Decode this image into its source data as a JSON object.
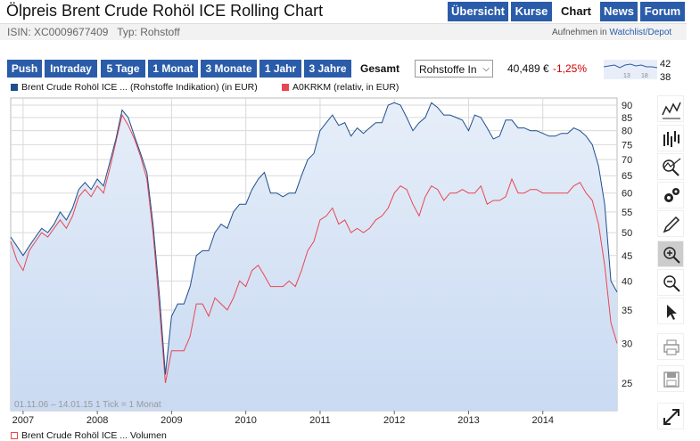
{
  "header": {
    "title": "Ölpreis Brent Crude Rohöl ICE Rolling Chart",
    "nav": [
      "Übersicht",
      "Kurse",
      "Chart",
      "News",
      "Forum"
    ],
    "active_nav": "Chart",
    "isin_text": "ISIN: XC0009677409   Typ: Rohstoff",
    "watch_prefix": "Aufnehmen in",
    "watch_link": "Watchlist/Depot"
  },
  "toolbar": {
    "ranges": [
      "Push",
      "Intraday",
      "5 Tage",
      "1 Monat",
      "3 Monate",
      "1 Jahr",
      "3 Jahre",
      "Gesamt"
    ],
    "active_range": "Gesamt",
    "select_value": "Rohstoffe In",
    "price": "40,489 €",
    "change": "-1,25%",
    "mini_high": "42",
    "mini_low": "38",
    "mini_ticks": [
      "13",
      "18"
    ]
  },
  "legend": {
    "series1": "Brent Crude Rohöl ICE ... (Rohstoffe Indikation) (in EUR)",
    "series2": "A0KRKM (relativ, in EUR)",
    "volume": "Brent Crude Rohöl ICE ... Volumen"
  },
  "chart_data": {
    "type": "line",
    "date_range": "01.11.06 – 14.01.15",
    "tick_note": "1 Tick = 1 Monat",
    "y_ticks": [
      25,
      30,
      35,
      40,
      45,
      50,
      55,
      60,
      65,
      70,
      75,
      80,
      85,
      90
    ],
    "ylim": [
      22,
      93
    ],
    "y_scale": "log",
    "x_ticks": [
      "2007",
      "2008",
      "2009",
      "2010",
      "2011",
      "2012",
      "2013",
      "2014"
    ],
    "xlim": [
      "2006-11",
      "2015-01"
    ],
    "colors": {
      "series1": "#1f4e8c",
      "series2": "#e8474f",
      "fill": "#c9daf2",
      "grid": "#d9d9d9"
    },
    "series": [
      {
        "name": "Brent Crude Rohöl ICE ... (Rohstoffe Indikation) (in EUR)",
        "x": [
          "2006-11",
          "2006-12",
          "2007-01",
          "2007-02",
          "2007-03",
          "2007-04",
          "2007-05",
          "2007-06",
          "2007-07",
          "2007-08",
          "2007-09",
          "2007-10",
          "2007-11",
          "2007-12",
          "2008-01",
          "2008-02",
          "2008-03",
          "2008-04",
          "2008-05",
          "2008-06",
          "2008-07",
          "2008-08",
          "2008-09",
          "2008-10",
          "2008-11",
          "2008-12",
          "2009-01",
          "2009-02",
          "2009-03",
          "2009-04",
          "2009-05",
          "2009-06",
          "2009-07",
          "2009-08",
          "2009-09",
          "2009-10",
          "2009-11",
          "2009-12",
          "2010-01",
          "2010-02",
          "2010-03",
          "2010-04",
          "2010-05",
          "2010-06",
          "2010-07",
          "2010-08",
          "2010-09",
          "2010-10",
          "2010-11",
          "2010-12",
          "2011-01",
          "2011-02",
          "2011-03",
          "2011-04",
          "2011-05",
          "2011-06",
          "2011-07",
          "2011-08",
          "2011-09",
          "2011-10",
          "2011-11",
          "2011-12",
          "2012-01",
          "2012-02",
          "2012-03",
          "2012-04",
          "2012-05",
          "2012-06",
          "2012-07",
          "2012-08",
          "2012-09",
          "2012-10",
          "2012-11",
          "2012-12",
          "2013-01",
          "2013-02",
          "2013-03",
          "2013-04",
          "2013-05",
          "2013-06",
          "2013-07",
          "2013-08",
          "2013-09",
          "2013-10",
          "2013-11",
          "2013-12",
          "2014-01",
          "2014-02",
          "2014-03",
          "2014-04",
          "2014-05",
          "2014-06",
          "2014-07",
          "2014-08",
          "2014-09",
          "2014-10",
          "2014-11",
          "2014-12",
          "2015-01"
        ],
        "y": [
          49,
          47,
          45,
          47,
          49,
          51,
          50,
          52,
          55,
          53,
          56,
          61,
          63,
          61,
          64,
          62,
          69,
          77,
          88,
          85,
          78,
          72,
          66,
          52,
          38,
          26,
          34,
          36,
          36,
          39,
          45,
          46,
          46,
          50,
          52,
          51,
          55,
          57,
          57,
          61,
          64,
          66,
          60,
          60,
          59,
          60,
          60,
          65,
          70,
          72,
          80,
          83,
          86,
          82,
          83,
          78,
          81,
          79,
          81,
          83,
          83,
          90,
          91,
          90,
          85,
          80,
          83,
          85,
          91,
          89,
          86,
          86,
          85,
          84,
          80,
          86,
          85,
          81,
          77,
          78,
          84,
          84,
          81,
          81,
          80,
          80,
          79,
          78,
          78,
          79,
          79,
          81,
          80,
          78,
          75,
          68,
          57,
          40,
          38
        ]
      },
      {
        "name": "A0KRKM (relativ, in EUR)",
        "x": [
          "2006-11",
          "2006-12",
          "2007-01",
          "2007-02",
          "2007-03",
          "2007-04",
          "2007-05",
          "2007-06",
          "2007-07",
          "2007-08",
          "2007-09",
          "2007-10",
          "2007-11",
          "2007-12",
          "2008-01",
          "2008-02",
          "2008-03",
          "2008-04",
          "2008-05",
          "2008-06",
          "2008-07",
          "2008-08",
          "2008-09",
          "2008-10",
          "2008-11",
          "2008-12",
          "2009-01",
          "2009-02",
          "2009-03",
          "2009-04",
          "2009-05",
          "2009-06",
          "2009-07",
          "2009-08",
          "2009-09",
          "2009-10",
          "2009-11",
          "2009-12",
          "2010-01",
          "2010-02",
          "2010-03",
          "2010-04",
          "2010-05",
          "2010-06",
          "2010-07",
          "2010-08",
          "2010-09",
          "2010-10",
          "2010-11",
          "2010-12",
          "2011-01",
          "2011-02",
          "2011-03",
          "2011-04",
          "2011-05",
          "2011-06",
          "2011-07",
          "2011-08",
          "2011-09",
          "2011-10",
          "2011-11",
          "2011-12",
          "2012-01",
          "2012-02",
          "2012-03",
          "2012-04",
          "2012-05",
          "2012-06",
          "2012-07",
          "2012-08",
          "2012-09",
          "2012-10",
          "2012-11",
          "2012-12",
          "2013-01",
          "2013-02",
          "2013-03",
          "2013-04",
          "2013-05",
          "2013-06",
          "2013-07",
          "2013-08",
          "2013-09",
          "2013-10",
          "2013-11",
          "2013-12",
          "2014-01",
          "2014-02",
          "2014-03",
          "2014-04",
          "2014-05",
          "2014-06",
          "2014-07",
          "2014-08",
          "2014-09",
          "2014-10",
          "2014-11",
          "2014-12",
          "2015-01"
        ],
        "y": [
          48,
          44,
          42,
          46,
          48,
          50,
          49,
          51,
          53,
          51,
          54,
          59,
          61,
          59,
          62,
          60,
          67,
          76,
          86,
          82,
          77,
          71,
          64,
          50,
          36,
          25,
          29,
          29,
          29,
          31,
          36,
          36,
          34,
          37,
          36,
          35,
          37,
          40,
          39,
          42,
          43,
          41,
          39,
          39,
          39,
          40,
          39,
          42,
          46,
          48,
          53,
          54,
          56,
          52,
          53,
          50,
          51,
          50,
          51,
          53,
          54,
          56,
          60,
          62,
          61,
          57,
          54,
          59,
          62,
          61,
          58,
          60,
          60,
          61,
          60,
          60,
          62,
          57,
          58,
          58,
          59,
          64,
          60,
          60,
          61,
          61,
          60,
          60,
          60,
          60,
          60,
          62,
          63,
          60,
          58,
          52,
          43,
          33,
          30
        ]
      }
    ]
  }
}
